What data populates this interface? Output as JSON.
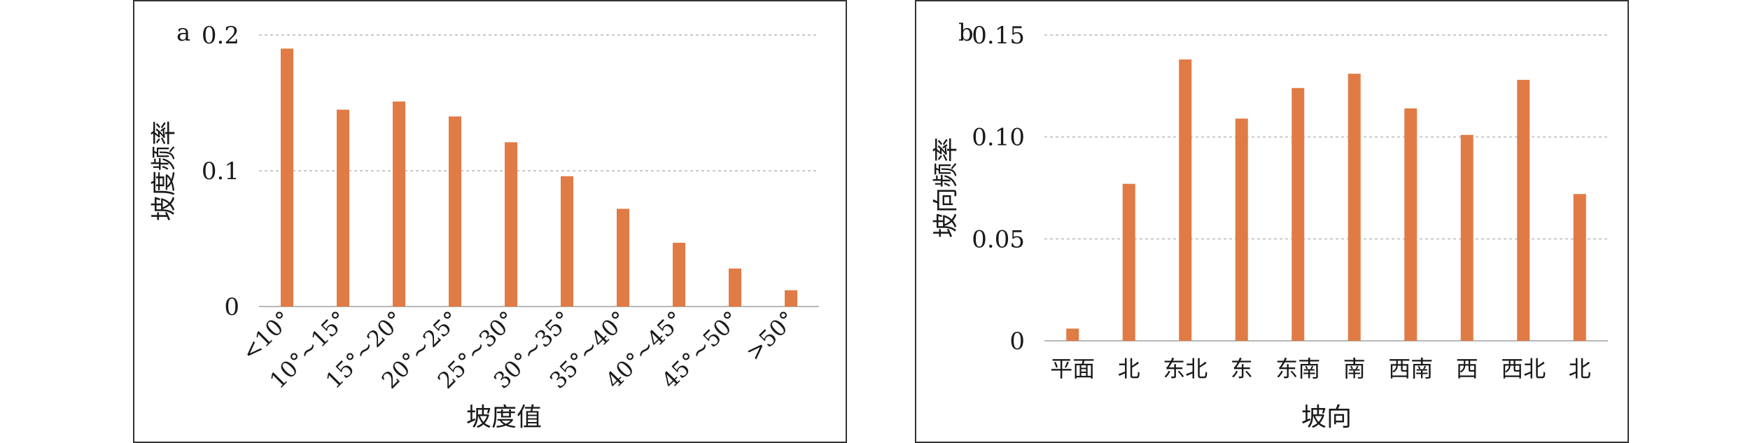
{
  "chart_data": [
    {
      "type": "bar",
      "panel_label": "a",
      "title": "",
      "xlabel": "坡度值",
      "ylabel": "坡度频率",
      "categories": [
        "<10°",
        "10°~15°",
        "15°~20°",
        "20°~25°",
        "25°~30°",
        "30°~35°",
        "35°~40°",
        "40°~45°",
        "45°~50°",
        ">50°"
      ],
      "values": [
        0.19,
        0.145,
        0.151,
        0.14,
        0.121,
        0.096,
        0.072,
        0.047,
        0.028,
        0.012
      ],
      "ylim": [
        0,
        0.2
      ],
      "yticks": [
        "0",
        "0.1",
        "0.2"
      ],
      "grid": true,
      "bar_color": "#e07b45"
    },
    {
      "type": "bar",
      "panel_label": "b",
      "title": "",
      "xlabel": "坡向",
      "ylabel": "坡向频率",
      "categories": [
        "平面",
        "北",
        "东北",
        "东",
        "东南",
        "南",
        "西南",
        "西",
        "西北",
        "北"
      ],
      "values": [
        0.006,
        0.077,
        0.138,
        0.109,
        0.124,
        0.131,
        0.114,
        0.101,
        0.128,
        0.072
      ],
      "ylim": [
        0,
        0.15
      ],
      "yticks": [
        "0",
        "0.05",
        "0.10",
        "0.15"
      ],
      "grid": true,
      "bar_color": "#e07b45"
    }
  ]
}
